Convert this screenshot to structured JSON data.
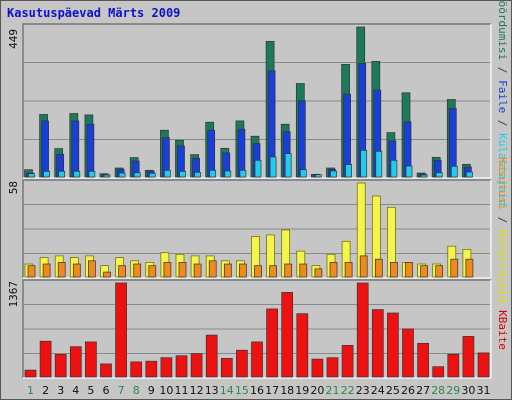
{
  "title": "Kasutuspäevad Märts 2009",
  "colors": {
    "background": "#c6c6c6",
    "panel_dark": "#777777",
    "panel_light": "#f2f2f2",
    "grid": "#8a8a8a",
    "title": "#1010cc",
    "weekday_label": "#111111",
    "weekend_label": "#2a8a4a",
    "bar_outline": "#333333",
    "bar_outline_light": "#666600"
  },
  "chart_data": [
    {
      "type": "bar",
      "panel": "top",
      "ylabel_max": "449",
      "ylim": [
        0,
        449
      ],
      "legend": [
        {
          "text": "Pöördumisi",
          "color": "#1c7a5a"
        },
        {
          "text": " / ",
          "color": "#444444"
        },
        {
          "text": "Faile",
          "color": "#1a3fd8"
        },
        {
          "text": " / ",
          "color": "#444444"
        },
        {
          "text": "Külastajaid",
          "color": "#22ccee"
        }
      ],
      "series": [
        {
          "name": "Pöördumisi",
          "color": "#1c7a5a",
          "values": [
            22,
            187,
            85,
            190,
            186,
            10,
            27,
            58,
            20,
            140,
            110,
            67,
            164,
            86,
            168,
            122,
            406,
            158,
            280,
            8,
            27,
            337,
            449,
            346,
            133,
            252,
            12,
            59,
            232,
            38,
            0
          ]
        },
        {
          "name": "Faile",
          "color": "#1a3fd8",
          "values": [
            12,
            168,
            68,
            168,
            158,
            7,
            23,
            48,
            17,
            118,
            93,
            56,
            140,
            72,
            143,
            100,
            318,
            136,
            228,
            6,
            23,
            248,
            340,
            260,
            108,
            165,
            9,
            50,
            205,
            30,
            0
          ]
        },
        {
          "name": "Külastajaid",
          "color": "#22ccee",
          "values": [
            10,
            17,
            17,
            17,
            17,
            6,
            12,
            13,
            11,
            20,
            17,
            14,
            20,
            18,
            20,
            50,
            60,
            70,
            22,
            7,
            18,
            37,
            80,
            77,
            50,
            33,
            6,
            13,
            32,
            15,
            0
          ]
        }
      ]
    },
    {
      "type": "bar",
      "panel": "middle",
      "ylabel_max": "58",
      "ylim": [
        0,
        58
      ],
      "legend": [
        {
          "text": "Kasutusi",
          "color": "#f08a18"
        },
        {
          "text": " / ",
          "color": "#444444"
        },
        {
          "text": "Külastajaid",
          "color": "#e0e000"
        }
      ],
      "series": [
        {
          "name": "Kasutusi",
          "color": "#f4f44a",
          "values": [
            8,
            12,
            13,
            12,
            13,
            7,
            12,
            10,
            9,
            15,
            14,
            13,
            13,
            10,
            10,
            25,
            26,
            29,
            16,
            7,
            14,
            22,
            58,
            50,
            43,
            9,
            8,
            8,
            19,
            17,
            0
          ]
        },
        {
          "name": "Külastajaid",
          "color": "#f08a18",
          "values": [
            7,
            8,
            9,
            8,
            10,
            3,
            7,
            8,
            7,
            9,
            9,
            8,
            10,
            8,
            8,
            7,
            7,
            8,
            8,
            5,
            9,
            9,
            13,
            11,
            9,
            9,
            7,
            7,
            11,
            11,
            0
          ]
        }
      ]
    },
    {
      "type": "bar",
      "panel": "bottom",
      "ylabel_max": "1367",
      "ylim": [
        0,
        1367
      ],
      "legend": [
        {
          "text": "KBaite",
          "color": "#dd0000"
        }
      ],
      "series": [
        {
          "name": "KBaite",
          "color": "#ee1111",
          "values": [
            100,
            520,
            330,
            440,
            510,
            190,
            1367,
            220,
            230,
            280,
            310,
            340,
            610,
            270,
            390,
            510,
            990,
            1230,
            920,
            260,
            280,
            460,
            1367,
            980,
            930,
            700,
            490,
            150,
            330,
            590,
            350
          ]
        }
      ]
    }
  ],
  "days": [
    "1",
    "2",
    "3",
    "4",
    "5",
    "6",
    "7",
    "8",
    "9",
    "10",
    "11",
    "12",
    "13",
    "14",
    "15",
    "16",
    "17",
    "18",
    "19",
    "20",
    "21",
    "22",
    "23",
    "24",
    "25",
    "26",
    "27",
    "28",
    "29",
    "30",
    "31"
  ],
  "weekend_days": [
    "1",
    "7",
    "8",
    "14",
    "15",
    "21",
    "22",
    "28",
    "29"
  ]
}
